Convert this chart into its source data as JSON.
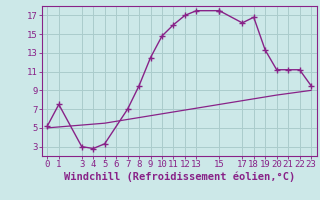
{
  "xlabel": "Windchill (Refroidissement éolien,°C)",
  "bg_color": "#cce8e8",
  "grid_color": "#aacccc",
  "line_color": "#882288",
  "x_curve": [
    0,
    1,
    3,
    4,
    5,
    7,
    8,
    9,
    10,
    11,
    12,
    13,
    15,
    15,
    17,
    18,
    19,
    20,
    21,
    22,
    23
  ],
  "y_curve": [
    5.2,
    7.5,
    3.0,
    2.8,
    3.3,
    7.0,
    9.5,
    12.5,
    14.8,
    16.0,
    17.0,
    17.5,
    17.5,
    17.5,
    16.2,
    16.8,
    13.3,
    11.2,
    11.2,
    11.2,
    9.5
  ],
  "x_ref": [
    0,
    5,
    10,
    15,
    20,
    23
  ],
  "y_ref": [
    5.0,
    5.5,
    6.5,
    7.5,
    8.5,
    9.0
  ],
  "xlim": [
    -0.5,
    23.5
  ],
  "ylim": [
    2.0,
    18.0
  ],
  "xticks": [
    0,
    1,
    3,
    4,
    5,
    6,
    7,
    8,
    9,
    10,
    11,
    12,
    13,
    15,
    17,
    18,
    19,
    20,
    21,
    22,
    23
  ],
  "yticks": [
    3,
    5,
    7,
    9,
    11,
    13,
    15,
    17
  ],
  "tick_fontsize": 6.5,
  "xlabel_fontsize": 7.5,
  "label_color": "#882288",
  "spine_color": "#882288"
}
